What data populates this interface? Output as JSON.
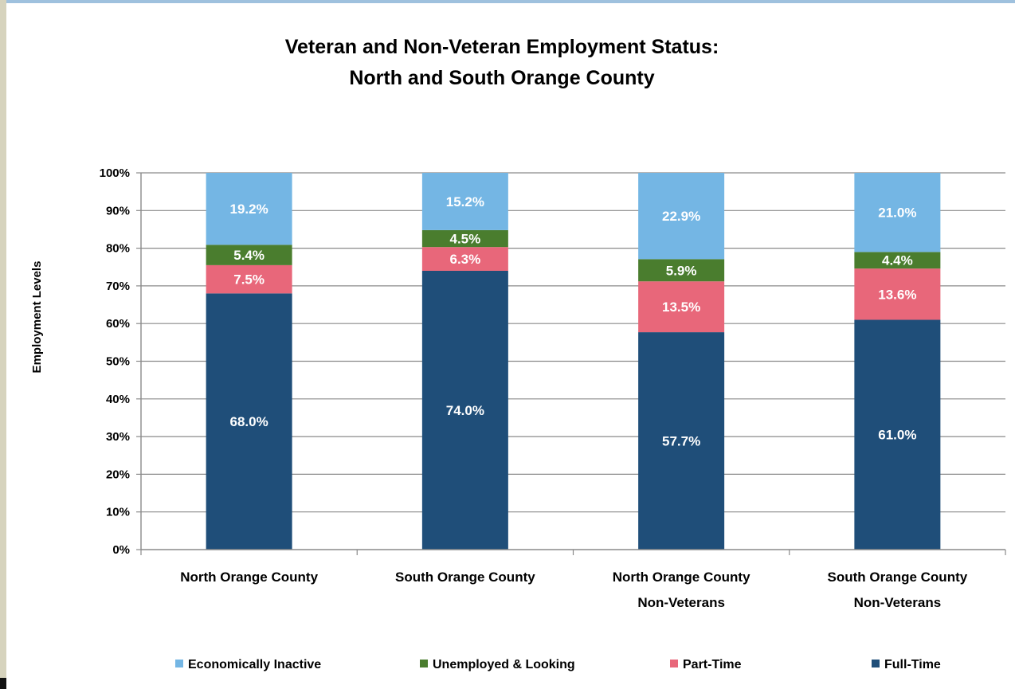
{
  "chart_data": {
    "type": "bar",
    "stacked": true,
    "title": [
      "Veteran and Non-Veteran Employment Status:",
      "North and South Orange County"
    ],
    "ylabel": "Employment Levels",
    "xlabel": "",
    "ylim": [
      0,
      100
    ],
    "yticks": [
      "0%",
      "10%",
      "20%",
      "30%",
      "40%",
      "50%",
      "60%",
      "70%",
      "80%",
      "90%",
      "100%"
    ],
    "grid": true,
    "legend_position": "bottom",
    "categories": [
      [
        "North Orange County"
      ],
      [
        "South Orange County"
      ],
      [
        "North Orange County",
        "Non-Veterans"
      ],
      [
        "South Orange County",
        "Non-Veterans"
      ]
    ],
    "series": [
      {
        "name": "Full-Time",
        "color": "#1f4e79",
        "values": [
          68.0,
          74.0,
          57.7,
          61.0
        ],
        "labels": [
          "68.0%",
          "74.0%",
          "57.7%",
          "61.0%"
        ]
      },
      {
        "name": "Part-Time",
        "color": "#e8677a",
        "values": [
          7.5,
          6.3,
          13.5,
          13.6
        ],
        "labels": [
          "7.5%",
          "6.3%",
          "13.5%",
          "13.6%"
        ]
      },
      {
        "name": "Unemployed & Looking",
        "color": "#4a7d2e",
        "values": [
          5.4,
          4.5,
          5.9,
          4.4
        ],
        "labels": [
          "5.4%",
          "4.5%",
          "5.9%",
          "4.4%"
        ]
      },
      {
        "name": "Economically Inactive",
        "color": "#74b6e4",
        "values": [
          19.2,
          15.2,
          22.9,
          21.0
        ],
        "labels": [
          "19.2%",
          "15.2%",
          "22.9%",
          "21.0%"
        ]
      }
    ],
    "legend_order": [
      "Economically Inactive",
      "Unemployed & Looking",
      "Part-Time",
      "Full-Time"
    ]
  }
}
